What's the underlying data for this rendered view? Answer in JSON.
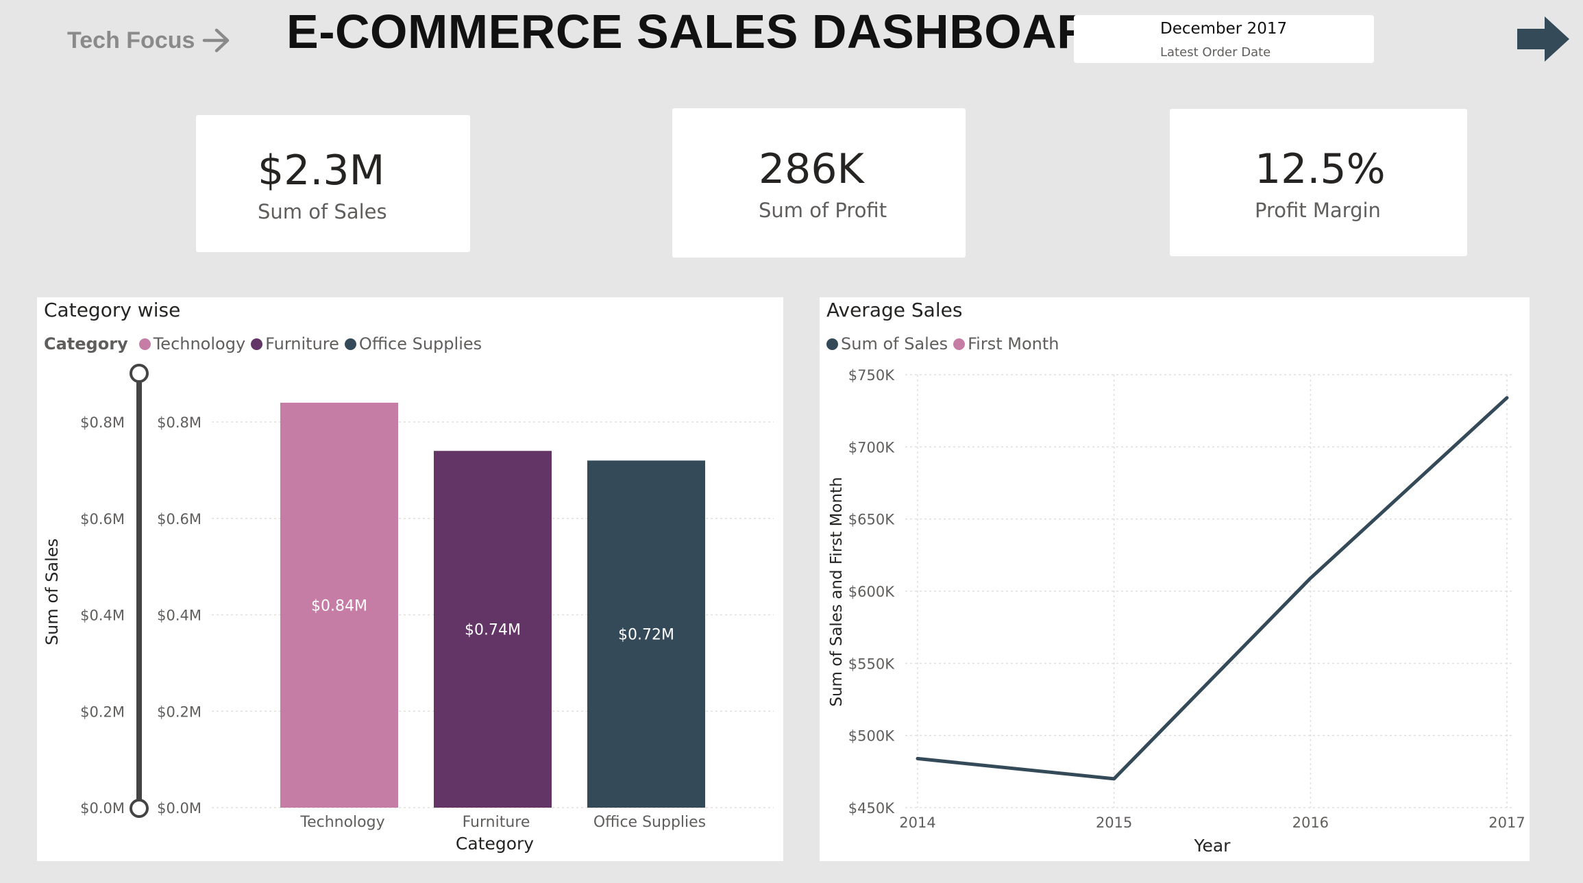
{
  "header": {
    "nav_back_label": "Tech Focus",
    "title": "E-COMMERCE SALES DASHBOARD",
    "latest_date_value": "December 2017",
    "latest_date_label": "Latest Order Date"
  },
  "kpis": [
    {
      "value": "$2.3M",
      "label": "Sum of Sales"
    },
    {
      "value": "286K",
      "label": "Sum of Profit"
    },
    {
      "value": "12.5%",
      "label": "Profit Margin"
    }
  ],
  "colors": {
    "technology": "#c57ca5",
    "furniture": "#633466",
    "office_supplies": "#344a58",
    "line": "#344a58",
    "first_month": "#c57ca5"
  },
  "chart_data": [
    {
      "type": "bar",
      "title": "Category wise",
      "legend_title": "Category",
      "legend": [
        "Technology",
        "Furniture",
        "Office Supplies"
      ],
      "categories": [
        "Technology",
        "Furniture",
        "Office Supplies"
      ],
      "values": [
        0.84,
        0.74,
        0.72
      ],
      "data_labels": [
        "$0.84M",
        "$0.74M",
        "$0.72M"
      ],
      "xlabel": "Category",
      "ylabel": "Sum of Sales",
      "yticks": [
        "$0.0M",
        "$0.2M",
        "$0.4M",
        "$0.6M",
        "$0.8M"
      ],
      "ylim": [
        0,
        0.8
      ],
      "grid": true,
      "legend_position": "top-left"
    },
    {
      "type": "line",
      "title": "Average Sales",
      "legend": [
        "Sum of Sales",
        "First Month"
      ],
      "x": [
        2014,
        2015,
        2016,
        2017
      ],
      "xticks": [
        "2014",
        "2015",
        "2016",
        "2017"
      ],
      "series": [
        {
          "name": "Sum of Sales",
          "values": [
            484000,
            470000,
            609000,
            734000
          ]
        }
      ],
      "xlabel": "Year",
      "ylabel": "Sum of Sales and First Month",
      "yticks": [
        "$450K",
        "$500K",
        "$550K",
        "$600K",
        "$650K",
        "$700K",
        "$750K"
      ],
      "ylim": [
        450000,
        750000
      ],
      "grid": true,
      "legend_position": "top-left"
    }
  ]
}
